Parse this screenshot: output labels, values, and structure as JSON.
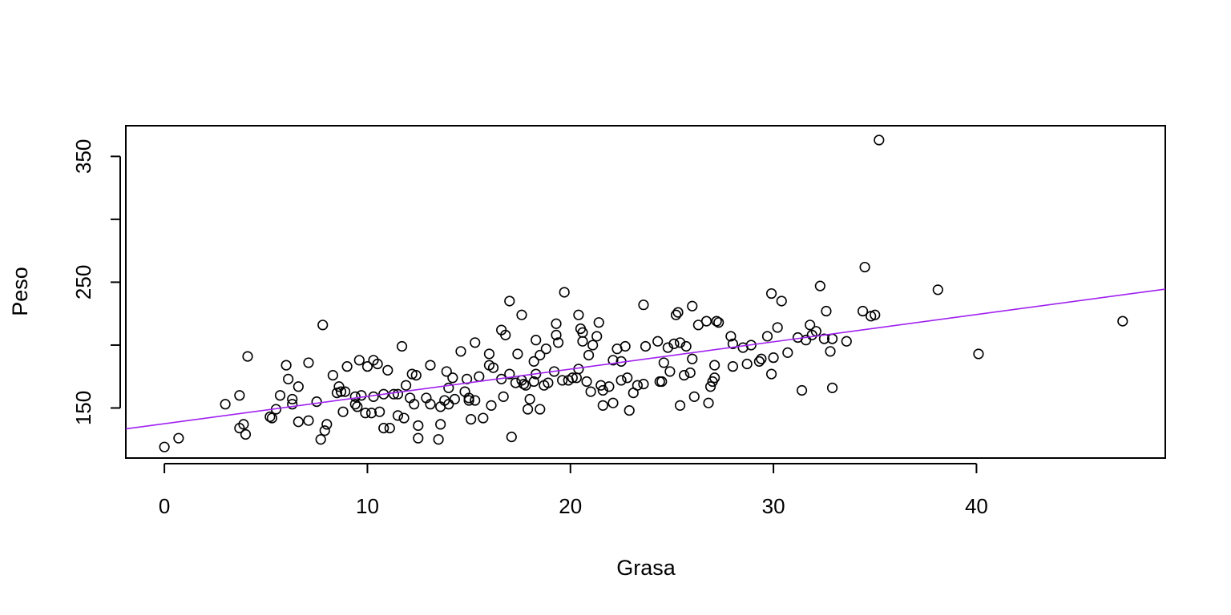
{
  "chart_data": {
    "type": "scatter",
    "title": "",
    "xlabel": "Grasa",
    "ylabel": "Peso",
    "xlim": [
      -1.9,
      49.3
    ],
    "ylim": [
      110.2,
      374.4
    ],
    "x_ticks": [
      0,
      10,
      20,
      30,
      40
    ],
    "y_ticks": [
      150,
      200,
      250,
      300,
      350
    ],
    "y_tick_labels": [
      "150",
      "",
      "250",
      "",
      "350"
    ],
    "grid": false,
    "legend": "none",
    "colors": {
      "points": "#000000",
      "regression_line": "#a020f0",
      "background": "#ffffff"
    },
    "regression_line": {
      "intercept": 137.5,
      "slope": 2.17
    },
    "series": [
      {
        "points": [
          [
            0,
            119
          ],
          [
            0.7,
            126
          ],
          [
            3,
            153
          ],
          [
            3.7,
            160
          ],
          [
            3.7,
            134
          ],
          [
            3.9,
            137
          ],
          [
            4,
            129
          ],
          [
            4.1,
            191
          ],
          [
            5.2,
            143
          ],
          [
            5.3,
            142
          ],
          [
            5.5,
            149
          ],
          [
            5.7,
            160
          ],
          [
            6,
            184
          ],
          [
            6.1,
            173
          ],
          [
            6.3,
            157
          ],
          [
            6.3,
            153
          ],
          [
            6.6,
            167
          ],
          [
            6.6,
            139
          ],
          [
            7.1,
            186
          ],
          [
            7.1,
            140
          ],
          [
            7.5,
            155
          ],
          [
            7.7,
            125
          ],
          [
            7.8,
            216
          ],
          [
            7.9,
            132
          ],
          [
            8,
            137
          ],
          [
            8.3,
            176
          ],
          [
            8.5,
            162
          ],
          [
            8.6,
            167
          ],
          [
            8.7,
            163
          ],
          [
            8.8,
            147
          ],
          [
            8.9,
            163
          ],
          [
            9,
            183
          ],
          [
            9.4,
            159
          ],
          [
            9.4,
            153
          ],
          [
            9.5,
            151
          ],
          [
            9.6,
            188
          ],
          [
            9.7,
            160
          ],
          [
            9.9,
            146
          ],
          [
            10,
            183
          ],
          [
            10.2,
            146
          ],
          [
            10.3,
            159
          ],
          [
            10.3,
            188
          ],
          [
            10.5,
            185
          ],
          [
            10.6,
            147
          ],
          [
            10.8,
            134
          ],
          [
            10.8,
            161
          ],
          [
            11,
            180
          ],
          [
            11.1,
            134
          ],
          [
            11.3,
            161
          ],
          [
            11.5,
            144
          ],
          [
            11.5,
            161
          ],
          [
            11.7,
            199
          ],
          [
            11.8,
            142
          ],
          [
            11.9,
            168
          ],
          [
            12.1,
            158
          ],
          [
            12.2,
            177
          ],
          [
            12.3,
            153
          ],
          [
            12.4,
            176
          ],
          [
            12.5,
            126
          ],
          [
            12.5,
            136
          ],
          [
            12.9,
            158
          ],
          [
            13.1,
            184
          ],
          [
            13.1,
            153
          ],
          [
            13.5,
            125
          ],
          [
            13.6,
            137
          ],
          [
            13.6,
            151
          ],
          [
            13.8,
            156
          ],
          [
            13.9,
            179
          ],
          [
            14,
            153
          ],
          [
            14,
            166
          ],
          [
            14.2,
            174
          ],
          [
            14.3,
            157
          ],
          [
            14.6,
            195
          ],
          [
            14.8,
            163
          ],
          [
            14.9,
            173
          ],
          [
            15,
            158
          ],
          [
            15,
            156
          ],
          [
            15.1,
            141
          ],
          [
            15.3,
            202
          ],
          [
            15.3,
            156
          ],
          [
            15.5,
            175
          ],
          [
            15.7,
            142
          ],
          [
            16,
            193
          ],
          [
            16,
            184
          ],
          [
            16.1,
            152
          ],
          [
            16.2,
            182
          ],
          [
            16.6,
            212
          ],
          [
            16.6,
            173
          ],
          [
            16.7,
            159
          ],
          [
            16.8,
            208
          ],
          [
            17,
            235
          ],
          [
            17,
            177
          ],
          [
            17.1,
            127
          ],
          [
            17.3,
            170
          ],
          [
            17.4,
            193
          ],
          [
            17.6,
            172
          ],
          [
            17.6,
            224
          ],
          [
            17.7,
            169
          ],
          [
            17.8,
            168
          ],
          [
            17.9,
            149
          ],
          [
            18,
            157
          ],
          [
            18.2,
            171
          ],
          [
            18.2,
            187
          ],
          [
            18.3,
            177
          ],
          [
            18.3,
            204
          ],
          [
            18.5,
            192
          ],
          [
            18.5,
            149
          ],
          [
            18.7,
            168
          ],
          [
            18.8,
            197
          ],
          [
            18.9,
            170
          ],
          [
            19.2,
            179
          ],
          [
            19.3,
            217
          ],
          [
            19.3,
            208
          ],
          [
            19.4,
            202
          ],
          [
            19.6,
            172
          ],
          [
            19.7,
            242
          ],
          [
            19.9,
            172
          ],
          [
            20.1,
            174
          ],
          [
            20.3,
            174
          ],
          [
            20.4,
            181
          ],
          [
            20.4,
            224
          ],
          [
            20.5,
            213
          ],
          [
            20.6,
            210
          ],
          [
            20.6,
            203
          ],
          [
            20.8,
            171
          ],
          [
            20.9,
            192
          ],
          [
            21,
            163
          ],
          [
            21.1,
            200
          ],
          [
            21.3,
            207
          ],
          [
            21.4,
            218
          ],
          [
            21.5,
            168
          ],
          [
            21.6,
            164
          ],
          [
            21.6,
            152
          ],
          [
            21.9,
            167
          ],
          [
            22.1,
            154
          ],
          [
            22.1,
            188
          ],
          [
            22.3,
            197
          ],
          [
            22.5,
            187
          ],
          [
            22.5,
            172
          ],
          [
            22.7,
            199
          ],
          [
            22.8,
            174
          ],
          [
            22.9,
            148
          ],
          [
            23.1,
            162
          ],
          [
            23.3,
            168
          ],
          [
            23.6,
            169
          ],
          [
            23.6,
            232
          ],
          [
            23.7,
            199
          ],
          [
            24.3,
            203
          ],
          [
            24.4,
            171
          ],
          [
            24.5,
            171
          ],
          [
            24.6,
            186
          ],
          [
            24.8,
            198
          ],
          [
            24.9,
            179
          ],
          [
            25.1,
            201
          ],
          [
            25.2,
            224
          ],
          [
            25.3,
            226
          ],
          [
            25.4,
            202
          ],
          [
            25.4,
            152
          ],
          [
            25.6,
            176
          ],
          [
            25.7,
            199
          ],
          [
            25.9,
            178
          ],
          [
            26,
            189
          ],
          [
            26,
            231
          ],
          [
            26.1,
            159
          ],
          [
            26.3,
            216
          ],
          [
            26.7,
            219
          ],
          [
            26.8,
            154
          ],
          [
            26.9,
            167
          ],
          [
            27,
            171
          ],
          [
            27.1,
            174
          ],
          [
            27.1,
            184
          ],
          [
            27.2,
            219
          ],
          [
            27.3,
            218
          ],
          [
            27.9,
            207
          ],
          [
            28,
            201
          ],
          [
            28,
            183
          ],
          [
            28.5,
            198
          ],
          [
            28.7,
            185
          ],
          [
            28.9,
            200
          ],
          [
            29.3,
            187
          ],
          [
            29.4,
            189
          ],
          [
            29.7,
            207
          ],
          [
            29.9,
            177
          ],
          [
            29.9,
            241
          ],
          [
            30,
            190
          ],
          [
            30.2,
            214
          ],
          [
            30.4,
            235
          ],
          [
            30.7,
            194
          ],
          [
            31.2,
            206
          ],
          [
            31.4,
            164
          ],
          [
            31.6,
            204
          ],
          [
            31.8,
            216
          ],
          [
            31.9,
            208
          ],
          [
            32.1,
            211
          ],
          [
            32.3,
            247
          ],
          [
            32.5,
            205
          ],
          [
            32.6,
            227
          ],
          [
            32.8,
            195
          ],
          [
            32.9,
            205
          ],
          [
            32.9,
            166
          ],
          [
            33.6,
            203
          ],
          [
            34.4,
            227
          ],
          [
            34.5,
            262
          ],
          [
            34.8,
            223
          ],
          [
            35,
            224
          ],
          [
            35.2,
            363
          ],
          [
            38.1,
            244
          ],
          [
            40.1,
            193
          ],
          [
            47.2,
            219
          ]
        ]
      }
    ]
  }
}
